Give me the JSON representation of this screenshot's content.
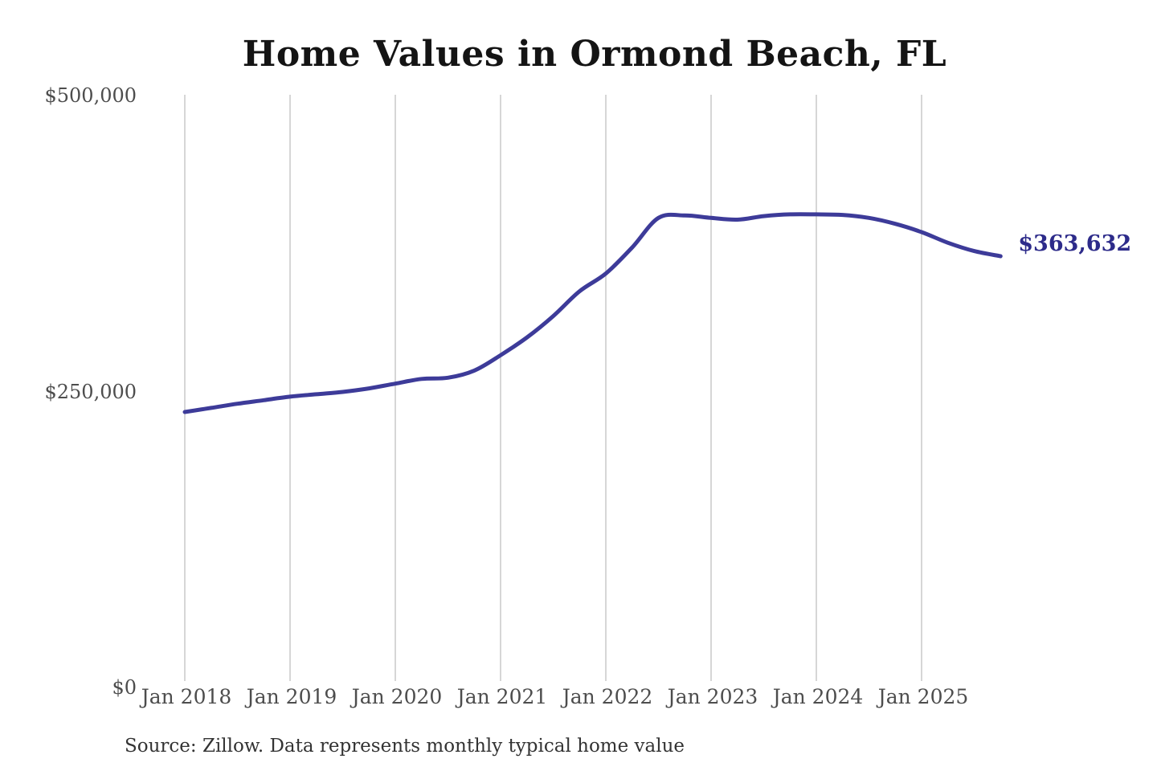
{
  "chart_data": {
    "type": "line",
    "title": "Home Values in Ormond Beach, FL",
    "source_note": "Source: Zillow. Data represents monthly typical home value",
    "xlabel": "",
    "ylabel": "",
    "x_tick_labels": [
      "Jan 2018",
      "Jan 2019",
      "Jan 2020",
      "Jan 2021",
      "Jan 2022",
      "Jan 2023",
      "Jan 2024",
      "Jan 2025"
    ],
    "y_ticks": [
      {
        "label": "$0",
        "value": 0
      },
      {
        "label": "$250,000",
        "value": 250000
      },
      {
        "label": "$500,000",
        "value": 500000
      }
    ],
    "ylim": [
      0,
      500000
    ],
    "grid": "vertical-only",
    "legend": "none",
    "series": [
      {
        "name": "Monthly typical home value",
        "points": [
          [
            "Jan 2018",
            232000
          ],
          [
            "Apr 2018",
            235500
          ],
          [
            "Jul 2018",
            239000
          ],
          [
            "Oct 2018",
            242000
          ],
          [
            "Jan 2019",
            245000
          ],
          [
            "Apr 2019",
            247000
          ],
          [
            "Jul 2019",
            249000
          ],
          [
            "Oct 2019",
            252000
          ],
          [
            "Jan 2020",
            256000
          ],
          [
            "Apr 2020",
            260000
          ],
          [
            "Jul 2020",
            261000
          ],
          [
            "Oct 2020",
            267000
          ],
          [
            "Jan 2021",
            280000
          ],
          [
            "Apr 2021",
            295000
          ],
          [
            "Jul 2021",
            313000
          ],
          [
            "Oct 2021",
            334000
          ],
          [
            "Jan 2022",
            349000
          ],
          [
            "Apr 2022",
            371000
          ],
          [
            "Jul 2022",
            396000
          ],
          [
            "Oct 2022",
            398000
          ],
          [
            "Jan 2023",
            396000
          ],
          [
            "Apr 2023",
            394500
          ],
          [
            "Jul 2023",
            397500
          ],
          [
            "Oct 2023",
            399000
          ],
          [
            "Jan 2024",
            399000
          ],
          [
            "Apr 2024",
            398500
          ],
          [
            "Jul 2024",
            396000
          ],
          [
            "Oct 2024",
            391000
          ],
          [
            "Jan 2025",
            384000
          ],
          [
            "Apr 2025",
            375000
          ],
          [
            "Jul 2025",
            368000
          ],
          [
            "Oct 2025",
            363632
          ]
        ]
      }
    ],
    "end_annotation": {
      "label": "$363,632",
      "value": 363632
    },
    "colors": {
      "line": "#3d3b99",
      "annotation": "#2d2b8a",
      "grid": "#c9c9c9",
      "axis_text": "#4d4d4d",
      "title": "#141414",
      "background": "#ffffff"
    }
  }
}
